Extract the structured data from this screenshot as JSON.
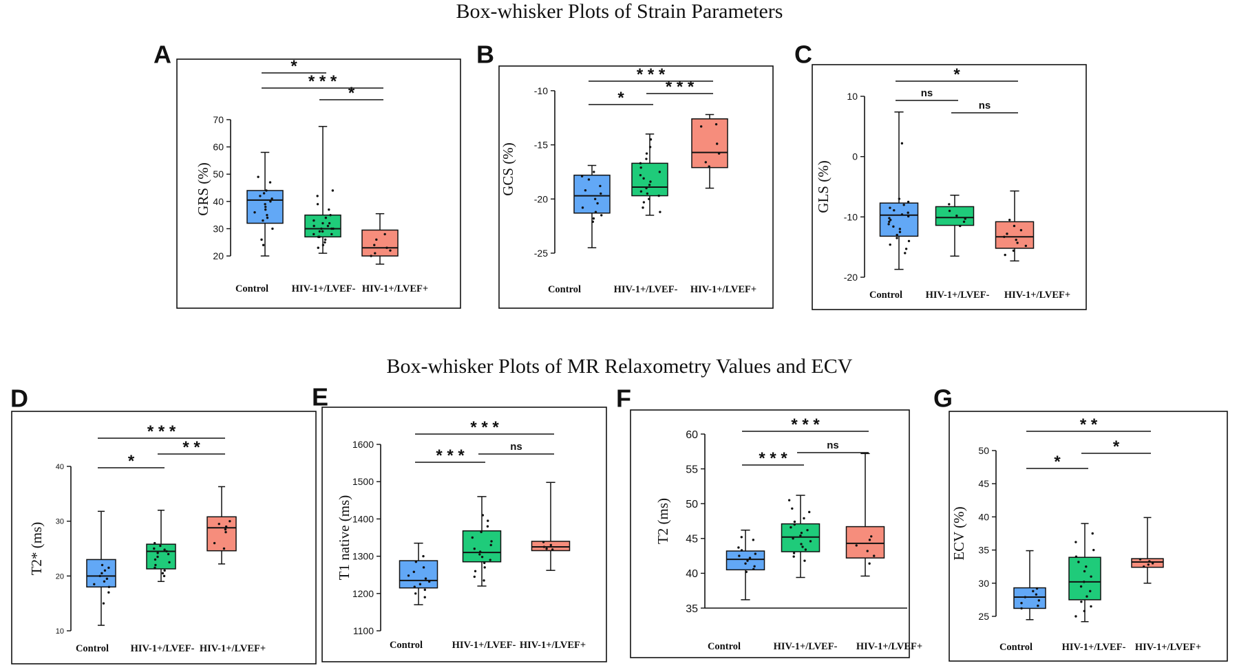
{
  "figure": {
    "title_top": "Box-whisker Plots of Strain Parameters",
    "title_bottom": "Box-whisker Plots of MR Relaxometry Values and ECV"
  },
  "colors": {
    "control": "#62a8f6",
    "lvef_minus": "#1fcb7a",
    "lvef_plus": "#f68d7c",
    "axis": "#111111"
  },
  "chart_data": [
    {
      "panel": "A",
      "type": "box",
      "ylabel": "GRS (%)",
      "categories": [
        "Control",
        "HIV-1+/LVEF-",
        "HIV-1+/LVEF+"
      ],
      "ylim": [
        17,
        72
      ],
      "yticks": [
        20,
        30,
        40,
        50,
        60,
        70
      ],
      "boxes": [
        {
          "min": 20,
          "q1": 32,
          "median": 40.5,
          "q3": 44,
          "max": 58,
          "points": [
            49,
            47,
            44,
            43,
            42,
            41,
            40,
            39,
            38,
            37,
            36,
            35,
            34,
            33,
            30,
            26,
            24
          ]
        },
        {
          "min": 21,
          "q1": 27,
          "median": 30,
          "q3": 35,
          "max": 67.5,
          "points": [
            44,
            42,
            39,
            37,
            35,
            34,
            33,
            32,
            32,
            31,
            31,
            30,
            30,
            30,
            29,
            29,
            29,
            28,
            28,
            27,
            27,
            26,
            25,
            24,
            23
          ]
        },
        {
          "min": 17,
          "q1": 20,
          "median": 23,
          "q3": 29.5,
          "max": 35.5,
          "points": [
            28,
            26,
            24,
            23,
            22,
            21,
            20
          ]
        }
      ],
      "significance": [
        {
          "from": 0,
          "to": 2,
          "label": "* * *"
        },
        {
          "from": 0,
          "to": 1,
          "label": "*"
        },
        {
          "from": 1,
          "to": 2,
          "label": "*"
        }
      ]
    },
    {
      "panel": "B",
      "type": "box",
      "ylabel": "GCS (%)",
      "categories": [
        "Control",
        "HIV-1+/LVEF-",
        "HIV-1+/LVEF+"
      ],
      "ylim": [
        -25,
        -9.5
      ],
      "yticks": [
        -25,
        -20,
        -15,
        -10
      ],
      "boxes": [
        {
          "min": -24.5,
          "q1": -21.3,
          "median": -19.7,
          "q3": -17.8,
          "max": -16.9,
          "points": [
            -17.5,
            -17.9,
            -18.2,
            -18.8,
            -19.2,
            -19.5,
            -20.0,
            -20.4,
            -20.8,
            -21.2,
            -21.5,
            -21.8,
            -22.1
          ]
        },
        {
          "min": -21.5,
          "q1": -19.7,
          "median": -18.9,
          "q3": -16.7,
          "max": -14,
          "points": [
            -14.5,
            -15.2,
            -15.8,
            -16.3,
            -16.7,
            -17.1,
            -17.5,
            -17.8,
            -18.1,
            -18.4,
            -18.7,
            -19.0,
            -19.3,
            -19.5,
            -19.7,
            -20.0,
            -20.3,
            -20.8,
            -21.2
          ]
        },
        {
          "min": -19,
          "q1": -17.1,
          "median": -15.7,
          "q3": -12.6,
          "max": -12.2,
          "points": [
            -13.1,
            -13.3,
            -14.9,
            -15.8,
            -16.6,
            -17.0
          ]
        }
      ],
      "significance": [
        {
          "from": 0,
          "to": 2,
          "label": "* * *"
        },
        {
          "from": 0,
          "to": 1,
          "label": "*"
        },
        {
          "from": 1,
          "to": 2,
          "label": "* * *"
        }
      ]
    },
    {
      "panel": "C",
      "type": "box",
      "ylabel": "GLS (%)",
      "categories": [
        "Control",
        "HIV-1+/LVEF-",
        "HIV-1+/LVEF+"
      ],
      "ylim": [
        -20,
        10
      ],
      "yticks": [
        -20,
        -10,
        0,
        10
      ],
      "boxes": [
        {
          "min": -18.7,
          "q1": -13.2,
          "median": -9.7,
          "q3": -7.7,
          "max": 7.4,
          "points": [
            2.2,
            -7.0,
            -7.5,
            -8.0,
            -8.5,
            -8.9,
            -9.3,
            -9.6,
            -9.9,
            -10.2,
            -10.5,
            -10.8,
            -11.2,
            -11.6,
            -12.0,
            -12.5,
            -13.0,
            -13.5,
            -14.0,
            -14.6,
            -15.3,
            -16.0
          ]
        },
        {
          "min": -16.5,
          "q1": -11.4,
          "median": -10.1,
          "q3": -8.3,
          "max": -6.4,
          "points": [
            -7.9,
            -9.0,
            -9.8,
            -10.3,
            -10.8,
            -11.5
          ]
        },
        {
          "min": -17.3,
          "q1": -15.2,
          "median": -13.3,
          "q3": -10.8,
          "max": -5.7,
          "points": [
            -10.5,
            -11.5,
            -12.2,
            -12.8,
            -13.3,
            -13.8,
            -14.3,
            -14.8,
            -15.6,
            -16.3
          ]
        }
      ],
      "significance": [
        {
          "from": 0,
          "to": 2,
          "label": "*"
        },
        {
          "from": 0,
          "to": 1,
          "label": "ns"
        },
        {
          "from": 1,
          "to": 2,
          "label": "ns"
        }
      ]
    },
    {
      "panel": "D",
      "type": "box",
      "ylabel": "T2* (ms)",
      "categories": [
        "Control",
        "HIV-1+/LVEF-",
        "HIV-1+/LVEF+"
      ],
      "ylim": [
        10,
        40
      ],
      "yticks": [
        10,
        20,
        30,
        40
      ],
      "boxes": [
        {
          "min": 11,
          "q1": 18,
          "median": 20,
          "q3": 23,
          "max": 31.8,
          "points": [
            22,
            21.5,
            21,
            20.5,
            20,
            19.5,
            19,
            18.5,
            18,
            17,
            15
          ]
        },
        {
          "min": 19,
          "q1": 21.3,
          "median": 24.5,
          "q3": 25.8,
          "max": 32,
          "points": [
            26,
            25.5,
            25,
            24.8,
            24.5,
            24.2,
            24,
            23.5,
            23,
            22.5,
            22,
            21.5,
            21,
            20.5,
            20
          ]
        },
        {
          "min": 22.2,
          "q1": 24.6,
          "median": 28.8,
          "q3": 30.8,
          "max": 36.3,
          "points": [
            30,
            29.5,
            29,
            28.5,
            28,
            26,
            25
          ]
        }
      ],
      "significance": [
        {
          "from": 0,
          "to": 2,
          "label": "* * *"
        },
        {
          "from": 0,
          "to": 1,
          "label": "*"
        },
        {
          "from": 1,
          "to": 2,
          "label": "* *"
        }
      ]
    },
    {
      "panel": "E",
      "type": "box",
      "ylabel": "T1 native (ms)",
      "categories": [
        "Control",
        "HIV-1+/LVEF-",
        "HIV-1+/LVEF+"
      ],
      "ylim": [
        1100,
        1600
      ],
      "yticks": [
        1100,
        1200,
        1300,
        1400,
        1500,
        1600
      ],
      "boxes": [
        {
          "min": 1170,
          "q1": 1215,
          "median": 1235,
          "q3": 1288,
          "max": 1335,
          "points": [
            1300,
            1285,
            1270,
            1258,
            1248,
            1240,
            1232,
            1225,
            1218,
            1210,
            1200,
            1190
          ]
        },
        {
          "min": 1220,
          "q1": 1285,
          "median": 1310,
          "q3": 1368,
          "max": 1460,
          "points": [
            1410,
            1395,
            1380,
            1365,
            1350,
            1340,
            1330,
            1320,
            1312,
            1305,
            1298,
            1290,
            1282,
            1270,
            1260,
            1245,
            1235
          ]
        },
        {
          "min": 1262,
          "q1": 1315,
          "median": 1325,
          "q3": 1340,
          "max": 1498,
          "points": [
            1338,
            1330,
            1325,
            1320,
            1318
          ]
        }
      ],
      "significance": [
        {
          "from": 0,
          "to": 2,
          "label": "* * *"
        },
        {
          "from": 0,
          "to": 1,
          "label": "* * *"
        },
        {
          "from": 1,
          "to": 2,
          "label": "ns"
        }
      ]
    },
    {
      "panel": "F",
      "type": "box",
      "ylabel": "T2 (ms)",
      "categories": [
        "Control",
        "HIV-1+/LVEF-",
        "HIV-1+/LVEF+"
      ],
      "ylim": [
        35,
        60
      ],
      "yticks": [
        35,
        40,
        45,
        50,
        55,
        60
      ],
      "boxes": [
        {
          "min": 36.2,
          "q1": 40.5,
          "median": 42.0,
          "q3": 43.2,
          "max": 46.2,
          "points": [
            45.2,
            44.8,
            43.7,
            43.3,
            42.8,
            42.5,
            42.2,
            41.8,
            41.4,
            41.0,
            40.6,
            40.2
          ]
        },
        {
          "min": 39.4,
          "q1": 43.1,
          "median": 45.2,
          "q3": 47.1,
          "max": 51.2,
          "points": [
            50.5,
            49.3,
            48.8,
            47.9,
            47.4,
            47.0,
            46.6,
            46.2,
            45.8,
            45.4,
            45.0,
            44.6,
            44.2,
            43.8,
            43.4,
            42.9,
            42.4,
            41.8
          ]
        },
        {
          "min": 39.6,
          "q1": 42.2,
          "median": 44.3,
          "q3": 46.7,
          "max": 57.2,
          "points": [
            45.3,
            44.8,
            44.0,
            43.2,
            42.5,
            41.4
          ]
        }
      ],
      "significance": [
        {
          "from": 0,
          "to": 2,
          "label": "* * *"
        },
        {
          "from": 0,
          "to": 1,
          "label": "* * *"
        },
        {
          "from": 1,
          "to": 2,
          "label": "ns"
        }
      ]
    },
    {
      "panel": "G",
      "type": "box",
      "ylabel": "ECV (%)",
      "categories": [
        "Control",
        "HIV-1+/LVEF-",
        "HIV-1+/LVEF+"
      ],
      "ylim": [
        25,
        50
      ],
      "yticks": [
        25,
        30,
        35,
        40,
        45,
        50
      ],
      "boxes": [
        {
          "min": 24.5,
          "q1": 26.2,
          "median": 27.9,
          "q3": 29.3,
          "max": 34.9,
          "points": [
            29.2,
            28.8,
            28.3,
            27.9,
            27.4,
            27.0,
            26.6,
            26.2
          ]
        },
        {
          "min": 24.2,
          "q1": 27.5,
          "median": 30.2,
          "q3": 33.9,
          "max": 39,
          "points": [
            37.5,
            36.2,
            35.0,
            34.0,
            33.2,
            32.5,
            31.8,
            31.0,
            30.2,
            29.5,
            28.8,
            28.0,
            27.2,
            26.5,
            25.8,
            25.0
          ]
        },
        {
          "min": 30,
          "q1": 32.4,
          "median": 33.2,
          "q3": 33.7,
          "max": 39.9,
          "points": [
            33.6,
            33.3,
            33.0,
            32.8,
            32.5
          ]
        }
      ],
      "significance": [
        {
          "from": 0,
          "to": 2,
          "label": "* *"
        },
        {
          "from": 0,
          "to": 1,
          "label": "*"
        },
        {
          "from": 1,
          "to": 2,
          "label": "*"
        }
      ]
    }
  ]
}
